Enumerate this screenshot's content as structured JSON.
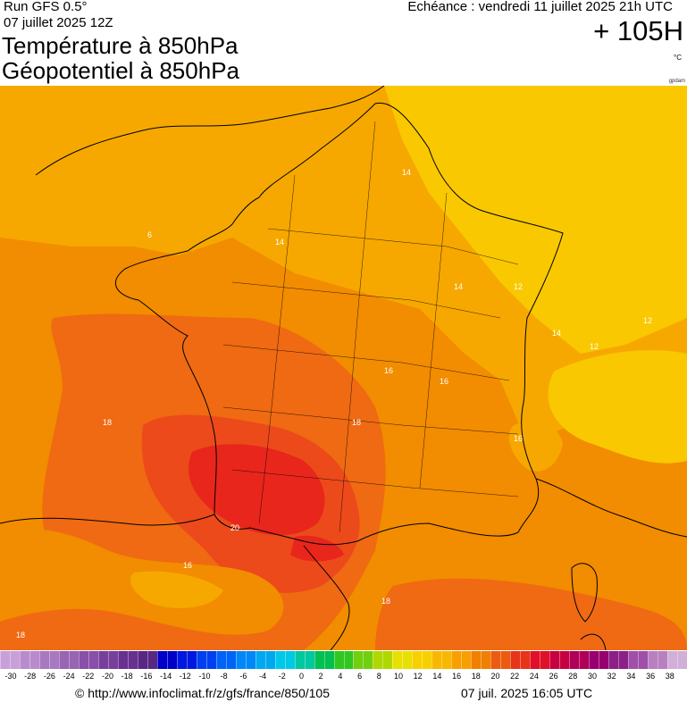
{
  "header": {
    "run": "Run GFS 0.5°",
    "run_date": "07 juillet 2025 12Z",
    "title_line1": "Température à 850hPa",
    "title_line2": "Géopotentiel à 850hPa",
    "echeance": "Echéance : vendredi 11 juillet 2025 21h UTC",
    "horizon": "+ 105H",
    "unit": "°C",
    "credit_small": "gpdam"
  },
  "map": {
    "contour_labels": [
      "6",
      "12",
      "12",
      "12",
      "14",
      "14",
      "14",
      "14",
      "16",
      "16",
      "16",
      "16",
      "18",
      "18",
      "18",
      "18",
      "20"
    ],
    "colors": {
      "t12": "#f9c800",
      "t14": "#f6a800",
      "t16": "#f28c00",
      "t18": "#ef6a12",
      "t20": "#ec4a1a",
      "t22": "#e8261c",
      "land_border": "#000000"
    }
  },
  "legend": {
    "ticks": [
      "-30",
      "-28",
      "-26",
      "-24",
      "-22",
      "-20",
      "-18",
      "-16",
      "-14",
      "-12",
      "-10",
      "-8",
      "-6",
      "-4",
      "-2",
      "0",
      "2",
      "4",
      "6",
      "8",
      "10",
      "12",
      "14",
      "16",
      "18",
      "20",
      "22",
      "24",
      "26",
      "28",
      "30",
      "32",
      "34",
      "36",
      "38"
    ],
    "colors": [
      "#c8a0d8",
      "#b88ccc",
      "#a878c0",
      "#9864b4",
      "#8850a8",
      "#78409c",
      "#683090",
      "#582884",
      "#0000c8",
      "#0018e0",
      "#0040f0",
      "#0064f8",
      "#0088f8",
      "#00a8f0",
      "#00c8e8",
      "#00c8a0",
      "#00c050",
      "#30c820",
      "#70d010",
      "#b0d800",
      "#e8e000",
      "#f8d000",
      "#f8b800",
      "#f8a000",
      "#f08000",
      "#ec5c10",
      "#e83418",
      "#e01028",
      "#c80040",
      "#b00058",
      "#980070",
      "#8c2088",
      "#a050a8",
      "#b880c0",
      "#d0b0d8"
    ]
  },
  "footer": {
    "source": "© http://www.infoclimat.fr/z/gfs/france/850/105",
    "generated": "07 juil. 2025 16:05 UTC"
  }
}
